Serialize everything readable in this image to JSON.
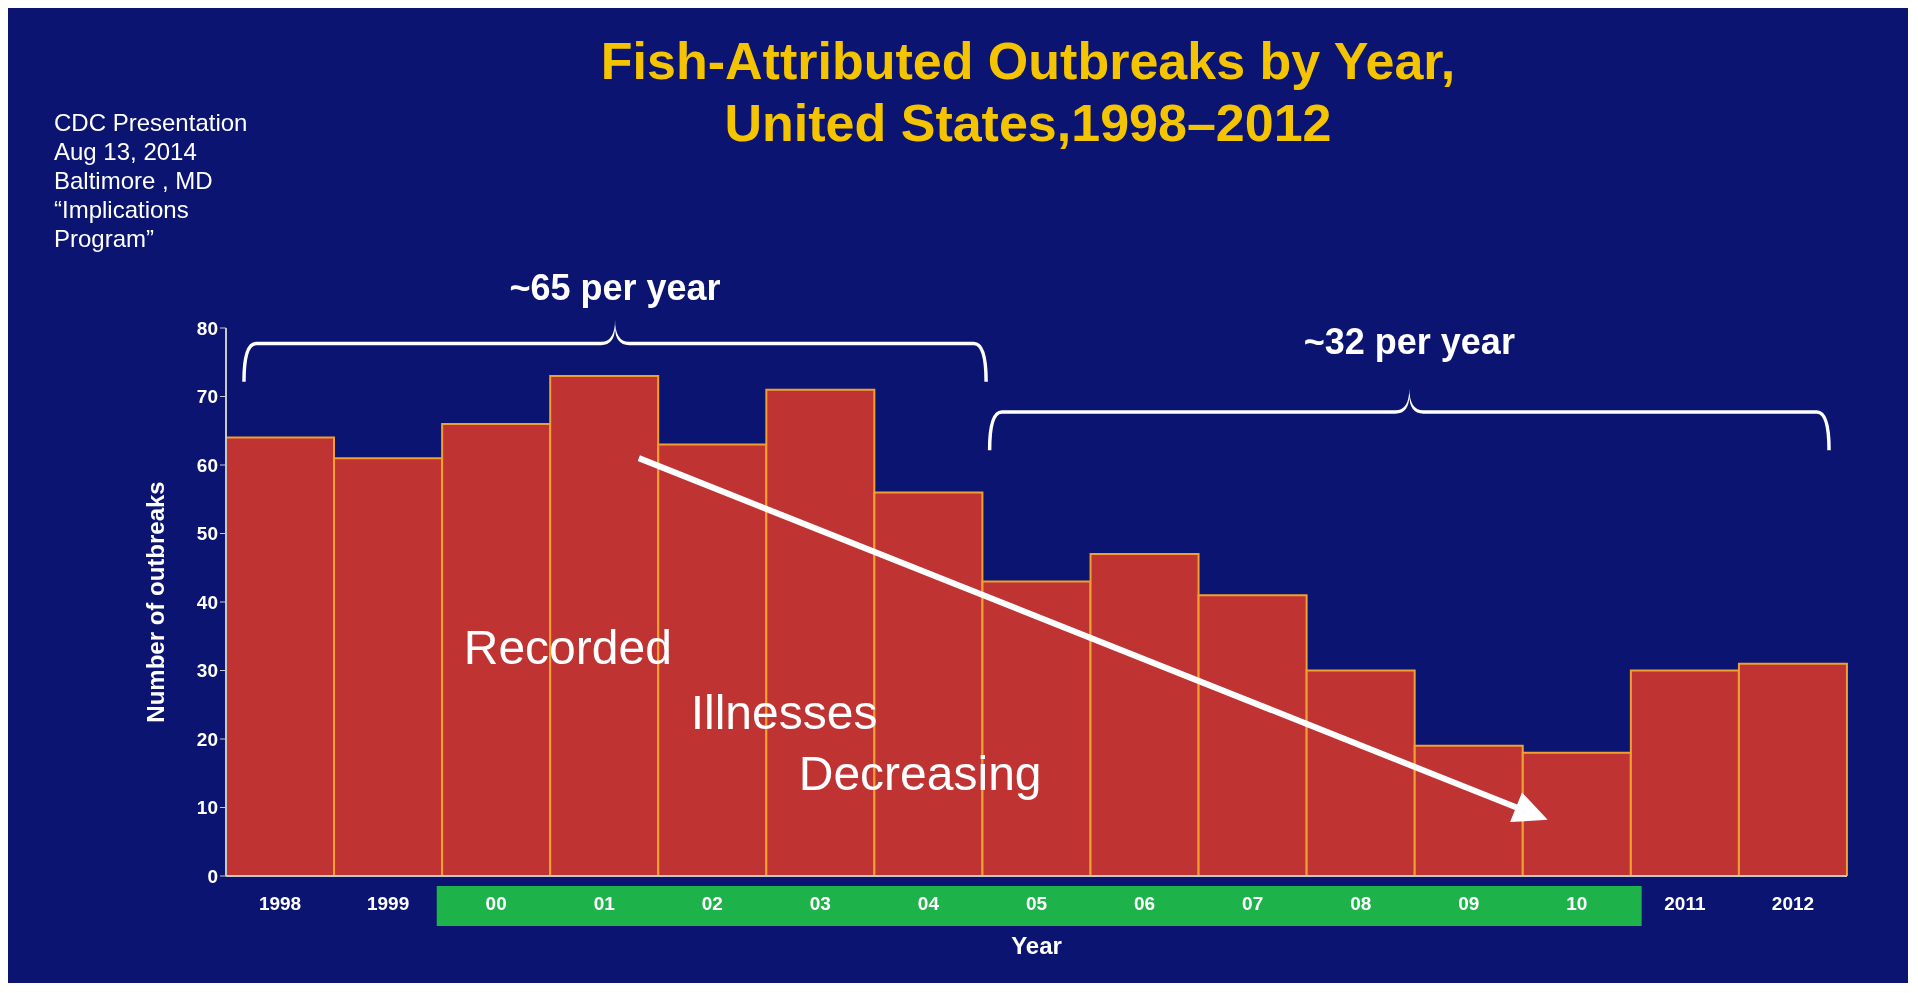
{
  "chart_data": {
    "type": "bar",
    "title": "Fish-Attributed Outbreaks by Year,\nUnited States,1998–2012",
    "annotations": [
      "CDC Presentation\nAug 13, 2014\nBaltimore , MD\n“Implications\nProgram”",
      "~65 per year",
      "~32 per year",
      "Recorded\nIllnesses\nDecreasing"
    ],
    "categories": [
      "1998",
      "1999",
      "00",
      "01",
      "02",
      "03",
      "04",
      "05",
      "06",
      "07",
      "08",
      "09",
      "10",
      "2011",
      "2012"
    ],
    "values": [
      64,
      61,
      66,
      73,
      63,
      71,
      56,
      43,
      47,
      41,
      30,
      19,
      18,
      30,
      31
    ],
    "color": "#bf3333",
    "xlabel": "Year",
    "ylabel": "Number of outbreaks",
    "ylim": [
      0,
      80
    ],
    "yticks": [
      0,
      10,
      20,
      30,
      40,
      50,
      60,
      70,
      80
    ]
  }
}
